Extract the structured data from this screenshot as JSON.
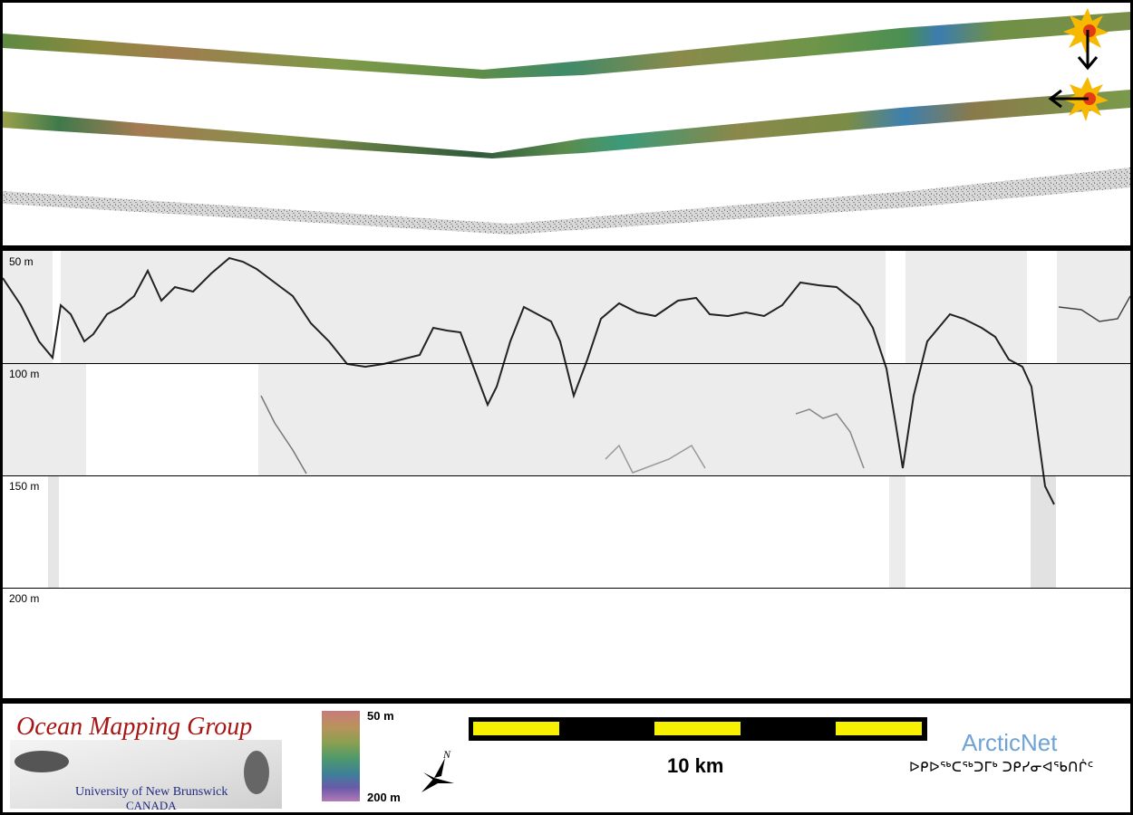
{
  "profile": {
    "depth_labels": [
      "50 m",
      "100 m",
      "150 m",
      "200 m"
    ]
  },
  "footer": {
    "logo": {
      "title": "Ocean Mapping Group",
      "university": "University of New Brunswick",
      "country": "CANADA"
    },
    "colorbar": {
      "top_label": "50 m",
      "bottom_label": "200 m"
    },
    "north_arrow": {
      "label": "N"
    },
    "scalebar": {
      "label": "10 km"
    },
    "partner": {
      "name": "ArcticNet",
      "syllabics": "ᐅᑭᐅᖅᑕᖅᑐᒥᒃ ᑐᑭᓯᓂᐊᖃᑎᒌᑦ"
    }
  },
  "colors": {
    "background": "#000000",
    "scale_fill": "#f7f000",
    "logo_red": "#a81515",
    "arcticnet_blue": "#6fa3d6"
  }
}
